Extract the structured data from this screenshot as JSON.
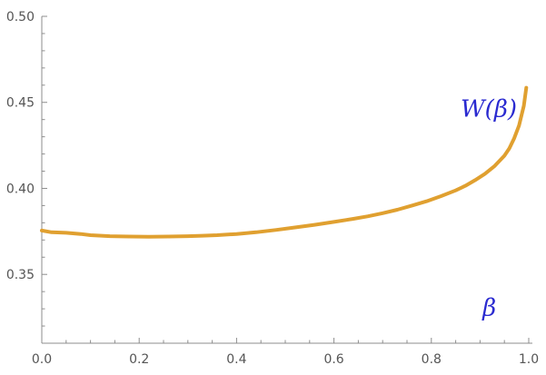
{
  "chart_data": {
    "type": "line",
    "title": "",
    "xlabel": "",
    "ylabel": "",
    "xlim": [
      0,
      1.0
    ],
    "ylim": [
      0.31,
      0.5
    ],
    "x_ticks": [
      0.0,
      0.2,
      0.4,
      0.6,
      0.8,
      1.0
    ],
    "x_tick_labels": [
      "0.0",
      "0.2",
      "0.4",
      "0.6",
      "0.8",
      "1.0"
    ],
    "y_ticks": [
      0.35,
      0.4,
      0.45,
      0.5
    ],
    "y_tick_labels": [
      "0.35",
      "0.40",
      "0.45",
      "0.50"
    ],
    "grid": false,
    "annotations": [
      {
        "text": "W(β)",
        "x": 0.86,
        "y": 0.4418,
        "color": "#2a2ad0"
      },
      {
        "text": "β",
        "x": 0.905,
        "y": 0.326,
        "color": "#2a2ad0"
      }
    ],
    "series": [
      {
        "color": "#e0a030",
        "x": [
          0.0,
          0.02,
          0.05,
          0.08,
          0.1,
          0.14,
          0.18,
          0.22,
          0.26,
          0.3,
          0.33,
          0.36,
          0.4,
          0.44,
          0.48,
          0.52,
          0.56,
          0.6,
          0.64,
          0.67,
          0.7,
          0.73,
          0.76,
          0.79,
          0.82,
          0.85,
          0.87,
          0.89,
          0.91,
          0.93,
          0.95,
          0.96,
          0.97,
          0.98,
          0.99,
          0.995
        ],
        "y": [
          0.3755,
          0.3745,
          0.3742,
          0.3735,
          0.3728,
          0.3722,
          0.372,
          0.3719,
          0.372,
          0.3722,
          0.3725,
          0.3728,
          0.3735,
          0.3745,
          0.3758,
          0.3773,
          0.3788,
          0.3805,
          0.3823,
          0.3838,
          0.3856,
          0.3876,
          0.39,
          0.3925,
          0.3955,
          0.3988,
          0.4015,
          0.4048,
          0.4085,
          0.413,
          0.419,
          0.4232,
          0.429,
          0.4365,
          0.448,
          0.4585
        ]
      }
    ]
  }
}
